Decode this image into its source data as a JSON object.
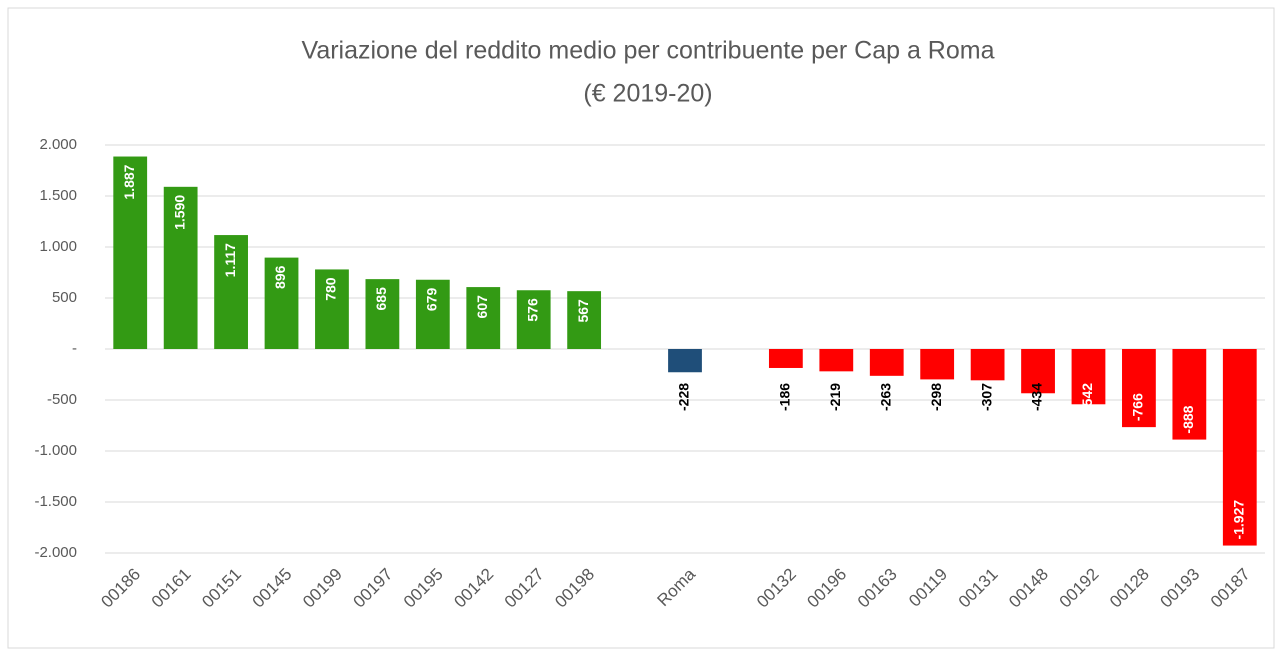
{
  "chart_data": {
    "type": "bar",
    "title": "Variazione del reddito medio per contribuente per Cap a Roma",
    "subtitle": "(€ 2019-20)",
    "categories": [
      "00186",
      "00161",
      "00151",
      "00145",
      "00199",
      "00197",
      "00195",
      "00142",
      "00127",
      "00198",
      null,
      "Roma",
      null,
      "00132",
      "00196",
      "00163",
      "00119",
      "00131",
      "00148",
      "00192",
      "00128",
      "00193",
      "00187"
    ],
    "values": [
      1887,
      1590,
      1117,
      896,
      780,
      685,
      679,
      607,
      576,
      567,
      null,
      -228,
      null,
      -186,
      -219,
      -263,
      -298,
      -307,
      -434,
      -542,
      -766,
      -888,
      -1927
    ],
    "value_labels": [
      "1.887",
      "1.590",
      "1.117",
      "896",
      "780",
      "685",
      "679",
      "607",
      "576",
      "567",
      null,
      "-228",
      null,
      "-186",
      "-219",
      "-263",
      "-298",
      "-307",
      "-434",
      "-542",
      "-766",
      "-888",
      "-1.927"
    ],
    "colors": [
      "#339a14",
      "#339a14",
      "#339a14",
      "#339a14",
      "#339a14",
      "#339a14",
      "#339a14",
      "#339a14",
      "#339a14",
      "#339a14",
      null,
      "#1f4e79",
      null,
      "#ff0000",
      "#ff0000",
      "#ff0000",
      "#ff0000",
      "#ff0000",
      "#ff0000",
      "#ff0000",
      "#ff0000",
      "#ff0000",
      "#ff0000"
    ],
    "label_colors": [
      "#ffffff",
      "#ffffff",
      "#ffffff",
      "#ffffff",
      "#ffffff",
      "#ffffff",
      "#ffffff",
      "#ffffff",
      "#ffffff",
      "#ffffff",
      null,
      "#000000",
      null,
      "#000000",
      "#000000",
      "#000000",
      "#000000",
      "#000000",
      "#000000",
      "#ffffff",
      "#ffffff",
      "#ffffff",
      "#ffffff"
    ],
    "ylim": [
      -2000,
      2000
    ],
    "yticks": [
      {
        "value": -2000,
        "label": "-2.000"
      },
      {
        "value": -1500,
        "label": "-1.500"
      },
      {
        "value": -1000,
        "label": "-1.000"
      },
      -500,
      {
        "value": 0,
        "label": "-"
      },
      500,
      {
        "value": 1000,
        "label": "1.000"
      },
      {
        "value": 1500,
        "label": "1.500"
      },
      {
        "value": 2000,
        "label": "2.000"
      }
    ],
    "grid": true
  }
}
